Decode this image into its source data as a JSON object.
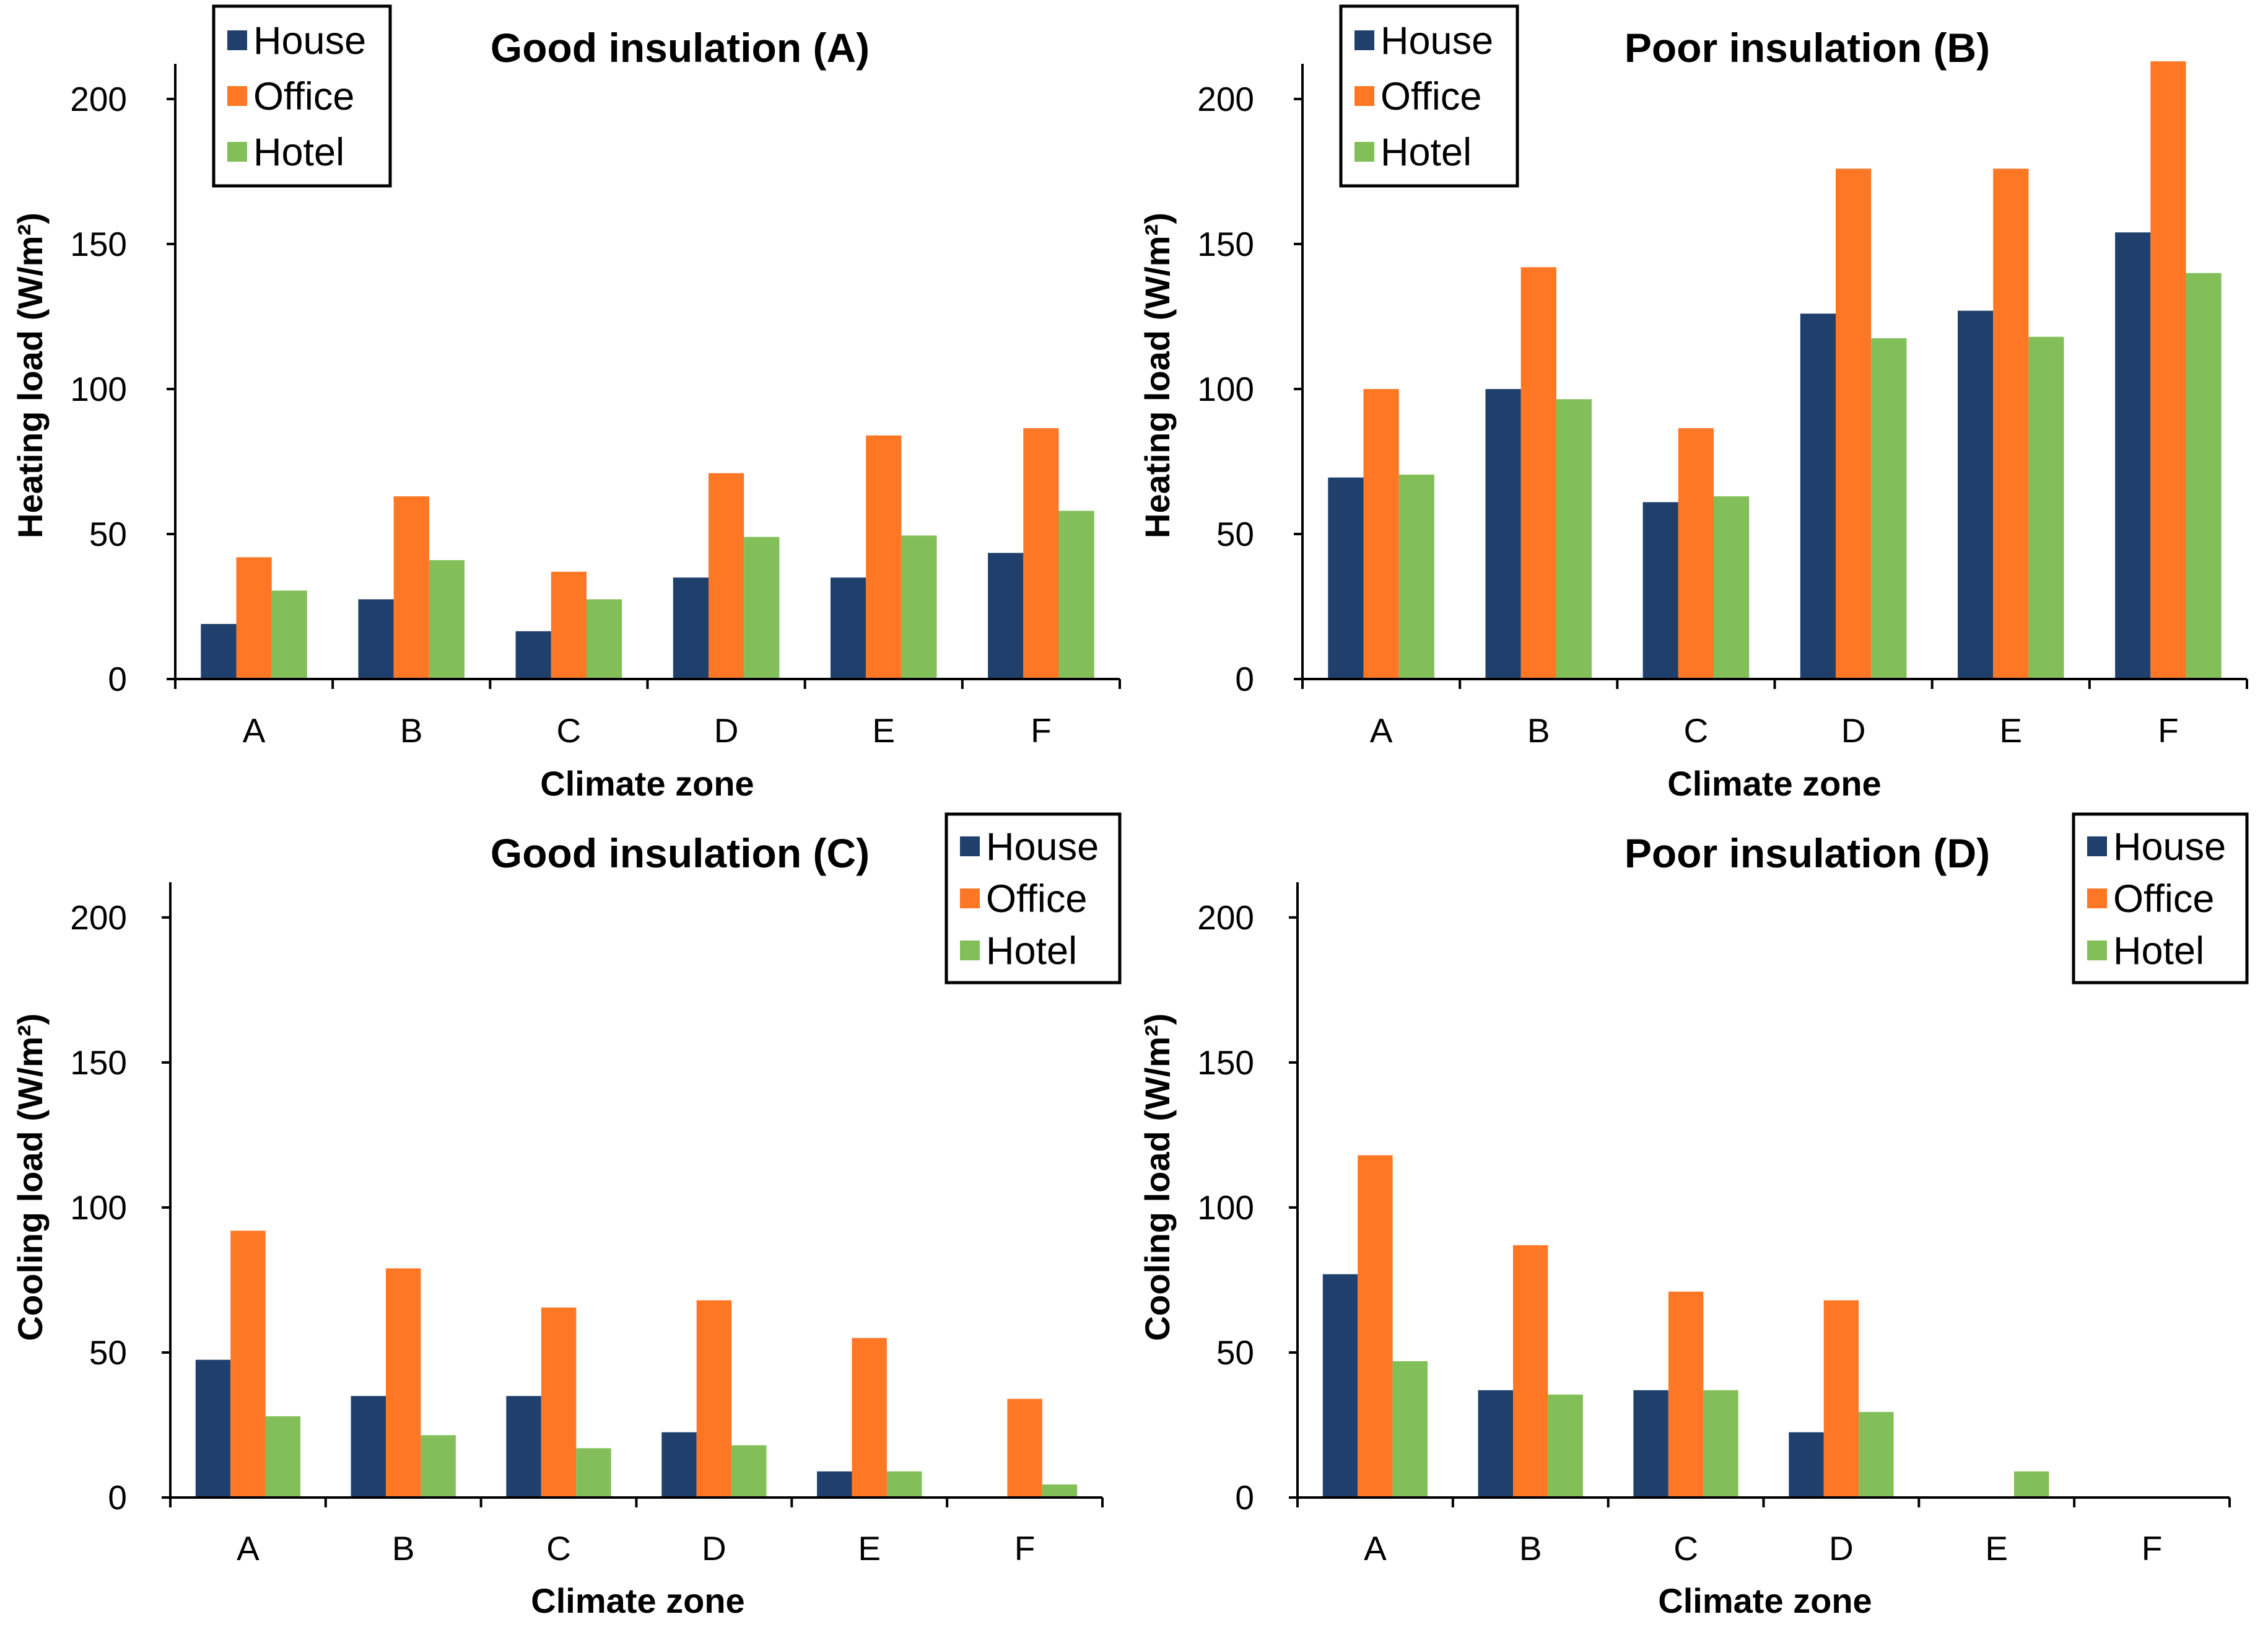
{
  "series_colors": {
    "House": "#1f3f6c",
    "Office": "#fe7725",
    "Hotel": "#83bf59"
  },
  "chart_data": [
    {
      "type": "bar",
      "title": "Good insulation (A)",
      "xlabel": "Climate zone",
      "ylabel": "Heating load (W/m²)",
      "ylim": [
        0,
        210
      ],
      "yticks": [
        "0",
        "50",
        "100",
        "150",
        "200"
      ],
      "grid": false,
      "legend_position": "top-left",
      "categories": [
        "A",
        "B",
        "C",
        "D",
        "E",
        "F"
      ],
      "series": [
        {
          "name": "House",
          "values": [
            19,
            27.5,
            16.5,
            35,
            35,
            43.5
          ]
        },
        {
          "name": "Office",
          "values": [
            42,
            63,
            37,
            71,
            84,
            86.5
          ]
        },
        {
          "name": "Hotel",
          "values": [
            30.5,
            41,
            27.5,
            49,
            49.5,
            58
          ]
        }
      ]
    },
    {
      "type": "bar",
      "title": "Poor insulation (B)",
      "xlabel": "Climate zone",
      "ylabel": "Heating load (W/m²)",
      "ylim": [
        0,
        210
      ],
      "yticks": [
        "0",
        "50",
        "100",
        "150",
        "200"
      ],
      "grid": false,
      "legend_position": "top-left",
      "categories": [
        "A",
        "B",
        "C",
        "D",
        "E",
        "F"
      ],
      "series": [
        {
          "name": "House",
          "values": [
            69.5,
            100,
            61,
            126,
            127,
            154
          ]
        },
        {
          "name": "Office",
          "values": [
            100,
            142,
            86.5,
            176,
            176,
            213
          ]
        },
        {
          "name": "Hotel",
          "values": [
            70.5,
            96.5,
            63,
            117.5,
            118,
            140
          ]
        }
      ]
    },
    {
      "type": "bar",
      "title": "Good insulation (C)",
      "xlabel": "Climate zone",
      "ylabel": "Cooling load (W/m²)",
      "ylim": [
        0,
        210
      ],
      "yticks": [
        "0",
        "50",
        "100",
        "150",
        "200"
      ],
      "grid": false,
      "legend_position": "top-right",
      "categories": [
        "A",
        "B",
        "C",
        "D",
        "E",
        "F"
      ],
      "series": [
        {
          "name": "House",
          "values": [
            47.5,
            35,
            35,
            22.5,
            9,
            0
          ]
        },
        {
          "name": "Office",
          "values": [
            92,
            79,
            65.5,
            68,
            55,
            34
          ]
        },
        {
          "name": "Hotel",
          "values": [
            28,
            21.5,
            17,
            18,
            9,
            4.5
          ]
        }
      ]
    },
    {
      "type": "bar",
      "title": "Poor insulation (D)",
      "xlabel": "Climate zone",
      "ylabel": "Cooling load (W/m²)",
      "ylim": [
        0,
        210
      ],
      "yticks": [
        "0",
        "50",
        "100",
        "150",
        "200"
      ],
      "grid": false,
      "legend_position": "top-right",
      "categories": [
        "A",
        "B",
        "C",
        "D",
        "E",
        "F"
      ],
      "series": [
        {
          "name": "House",
          "values": [
            77,
            37,
            37,
            22.5,
            0,
            0
          ]
        },
        {
          "name": "Office",
          "values": [
            118,
            87,
            71,
            68,
            0,
            0
          ]
        },
        {
          "name": "Hotel",
          "values": [
            47,
            35.5,
            37,
            29.5,
            9,
            0
          ]
        }
      ]
    }
  ]
}
